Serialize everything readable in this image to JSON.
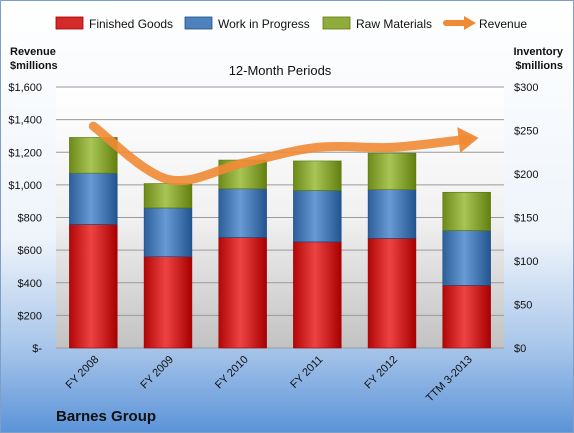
{
  "chart_data": {
    "type": "bar",
    "stacked": true,
    "title": "12-Month Periods",
    "company": "Barnes Group",
    "categories": [
      "FY 2008",
      "FY 2009",
      "FY 2010",
      "FY 2011",
      "FY 2012",
      "TTM 3-2013"
    ],
    "series": [
      {
        "name": "Finished Goods",
        "axis": "right",
        "color": "#d42a2a",
        "values": [
          142,
          105,
          127,
          122,
          126,
          72
        ]
      },
      {
        "name": "Work in Progress",
        "axis": "right",
        "color": "#4f81bd",
        "values": [
          59,
          56,
          56,
          59,
          56,
          63
        ]
      },
      {
        "name": "Raw Materials",
        "axis": "right",
        "color": "#8fac3c",
        "values": [
          41,
          28,
          33,
          34,
          42,
          44
        ]
      }
    ],
    "line_series": {
      "name": "Revenue",
      "axis": "left",
      "color": "#ef8a35",
      "values": [
        1360,
        1034,
        1133,
        1230,
        1230,
        1280
      ]
    },
    "left_axis": {
      "title_line1": "Revenue",
      "title_line2": "$millions",
      "ylim": [
        0,
        1600
      ],
      "ticks": [
        0,
        200,
        400,
        600,
        800,
        1000,
        1200,
        1400,
        1600
      ],
      "tick_labels": [
        "$-",
        "$200",
        "$400",
        "$600",
        "$800",
        "$1,000",
        "$1,200",
        "$1,400",
        "$1,600"
      ]
    },
    "right_axis": {
      "title_line1": "Inventory",
      "title_line2": "$millions",
      "ylim": [
        0,
        300
      ],
      "ticks": [
        0,
        50,
        100,
        150,
        200,
        250,
        300
      ],
      "tick_labels": [
        "$0",
        "$50",
        "$100",
        "$150",
        "$200",
        "$250",
        "$300"
      ]
    },
    "grid": true,
    "legend_position": "top"
  }
}
